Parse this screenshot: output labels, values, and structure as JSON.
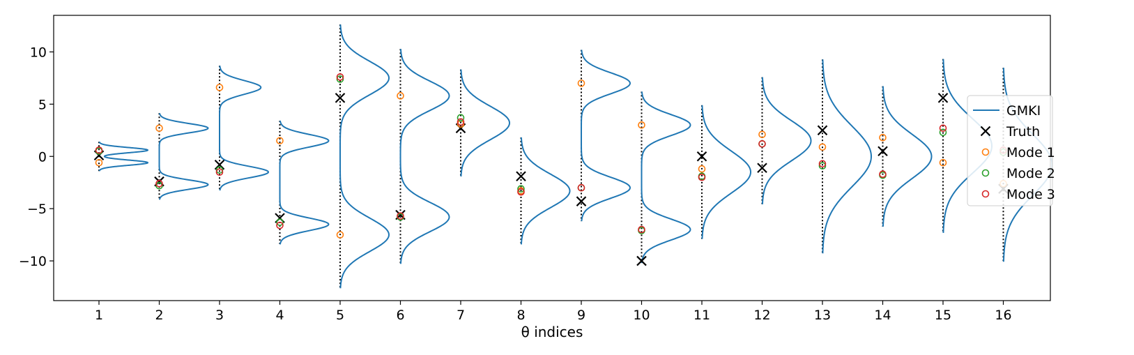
{
  "chart_data": {
    "type": "violin",
    "xlabel": "θ indices",
    "ylabel": "",
    "categories": [
      "1",
      "2",
      "3",
      "4",
      "5",
      "6",
      "7",
      "8",
      "9",
      "10",
      "11",
      "12",
      "13",
      "14",
      "15",
      "16"
    ],
    "ylim": [
      -13.8,
      13.5
    ],
    "yticks": [
      "10",
      "5",
      "0",
      "−5",
      "−10"
    ],
    "ytick_values": [
      10,
      5,
      0,
      -5,
      -10
    ],
    "legend_position": "right",
    "colors": {
      "gmki": "#1f77b4",
      "truth": "#000000",
      "mode1": "#ff7f0e",
      "mode2": "#2ca02c",
      "mode3": "#d62728",
      "median_line": "#000000"
    },
    "series": [
      {
        "name": "GMKI",
        "kind": "density",
        "components": [
          [
            [
              0.5,
              0.6,
              0.25
            ],
            [
              0.5,
              -0.6,
              0.25
            ]
          ],
          [
            [
              0.5,
              2.7,
              0.45
            ],
            [
              0.5,
              -2.7,
              0.45
            ]
          ],
          [
            [
              0.5,
              6.6,
              0.65
            ],
            [
              0.5,
              -1.5,
              0.55
            ]
          ],
          [
            [
              0.5,
              1.5,
              0.6
            ],
            [
              0.5,
              -6.5,
              0.6
            ]
          ],
          [
            [
              0.5,
              7.5,
              1.6
            ],
            [
              0.5,
              -7.5,
              1.6
            ]
          ],
          [
            [
              0.5,
              5.8,
              1.4
            ],
            [
              0.5,
              -5.8,
              1.4
            ]
          ],
          [
            [
              1.0,
              3.2,
              1.6
            ]
          ],
          [
            [
              1.0,
              -3.3,
              1.6
            ]
          ],
          [
            [
              0.5,
              7.0,
              1.0
            ],
            [
              0.5,
              -3.0,
              1.0
            ]
          ],
          [
            [
              0.5,
              3.0,
              1.0
            ],
            [
              0.5,
              -7.0,
              1.0
            ]
          ],
          [
            [
              1.0,
              -1.5,
              2.0
            ]
          ],
          [
            [
              1.0,
              1.5,
              1.9
            ]
          ],
          [
            [
              1.0,
              0.0,
              2.9
            ]
          ],
          [
            [
              1.0,
              0.0,
              2.1
            ]
          ],
          [
            [
              1.0,
              1.0,
              2.6
            ]
          ],
          [
            [
              1.0,
              -0.8,
              2.9
            ]
          ]
        ]
      },
      {
        "name": "Truth",
        "marker": "x",
        "values": [
          0.1,
          -2.4,
          -0.8,
          -5.9,
          5.6,
          -5.6,
          2.7,
          -1.9,
          -4.3,
          -10.0,
          0.0,
          -1.1,
          2.5,
          0.5,
          5.6,
          -3.1
        ]
      },
      {
        "name": "Mode 1",
        "marker": "o",
        "values": [
          -0.6,
          2.7,
          6.6,
          1.5,
          -7.5,
          5.8,
          3.1,
          -3.3,
          7.0,
          3.0,
          -1.2,
          2.1,
          0.9,
          1.8,
          -0.6,
          -2.6
        ]
      },
      {
        "name": "Mode 2",
        "marker": "o",
        "values": [
          0.5,
          -2.8,
          -1.3,
          -6.3,
          7.4,
          -5.8,
          3.7,
          -3.1,
          -3.0,
          -7.1,
          -1.9,
          1.2,
          -0.9,
          -1.8,
          2.3,
          0.4
        ]
      },
      {
        "name": "Mode 3",
        "marker": "o",
        "values": [
          0.6,
          -2.6,
          -1.5,
          -6.6,
          7.6,
          -5.7,
          3.3,
          -3.4,
          -3.0,
          -7.0,
          -2.0,
          1.2,
          -0.7,
          -1.7,
          2.7,
          0.6
        ]
      }
    ],
    "legend": [
      {
        "label": "GMKI",
        "symbol": "line",
        "color": "#1f77b4"
      },
      {
        "label": "Truth",
        "symbol": "x",
        "color": "#000000"
      },
      {
        "label": "Mode 1",
        "symbol": "o",
        "color": "#ff7f0e"
      },
      {
        "label": "Mode 2",
        "symbol": "o",
        "color": "#2ca02c"
      },
      {
        "label": "Mode 3",
        "symbol": "o",
        "color": "#d62728"
      }
    ]
  }
}
